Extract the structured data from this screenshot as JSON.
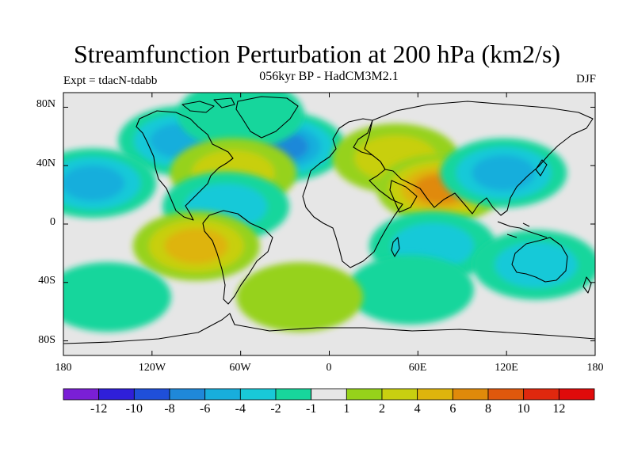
{
  "figure": {
    "title": "Streamfunction Perturbation at 200 hPa (km2/s)",
    "subtitle": "056kyr BP - HadCM3M2.1",
    "experiment": "Expt = tdacN-tdabb",
    "season": "DJF"
  },
  "axes": {
    "y_ticks": [
      "80N",
      "40N",
      "0",
      "40S",
      "80S"
    ],
    "x_ticks": [
      "180",
      "120W",
      "60W",
      "0",
      "60E",
      "120E",
      "180"
    ]
  },
  "colorbar": {
    "labels": [
      "-12",
      "-10",
      "-8",
      "-6",
      "-4",
      "-2",
      "-1",
      "1",
      "2",
      "4",
      "6",
      "8",
      "10",
      "12"
    ],
    "colors": [
      "#7a1fd6",
      "#2f1fd9",
      "#1f4fd9",
      "#1f88d9",
      "#18aedc",
      "#19c9d8",
      "#18d69c",
      "#e6e6e6",
      "#96d21a",
      "#c8cf10",
      "#deb40c",
      "#e08a0a",
      "#e0580c",
      "#e0280e",
      "#e00b0b"
    ]
  },
  "map_data": {
    "projection": "cylindrical equidistant",
    "background": "#e6e6e6",
    "anomaly_regions": [
      {
        "name": "north-america",
        "lon": -100,
        "lat": 57,
        "value": -6
      },
      {
        "name": "north-atlantic",
        "lon": -32,
        "lat": 53,
        "value": -8
      },
      {
        "name": "greenland-arctic",
        "lon": -60,
        "lat": 75,
        "value": -2
      },
      {
        "name": "north-pacific",
        "lon": -160,
        "lat": 28,
        "value": -6
      },
      {
        "name": "west-atlantic",
        "lon": -65,
        "lat": 35,
        "value": 4
      },
      {
        "name": "caribbean",
        "lon": -70,
        "lat": 12,
        "value": -4
      },
      {
        "name": "europe-middle-east",
        "lon": 45,
        "lat": 45,
        "value": 4
      },
      {
        "name": "south-asia",
        "lon": 75,
        "lat": 24,
        "value": 8
      },
      {
        "name": "east-asia",
        "lon": 118,
        "lat": 35,
        "value": -6
      },
      {
        "name": "east-pacific-south",
        "lon": -90,
        "lat": -15,
        "value": 6
      },
      {
        "name": "indian-ocean",
        "lon": 70,
        "lat": -15,
        "value": -4
      },
      {
        "name": "australia",
        "lon": 140,
        "lat": -28,
        "value": -4
      },
      {
        "name": "south-indian",
        "lon": 55,
        "lat": -45,
        "value": -2
      },
      {
        "name": "south-atlantic",
        "lon": -20,
        "lat": -50,
        "value": 2
      },
      {
        "name": "south-pacific",
        "lon": -150,
        "lat": -50,
        "value": -2
      }
    ]
  }
}
